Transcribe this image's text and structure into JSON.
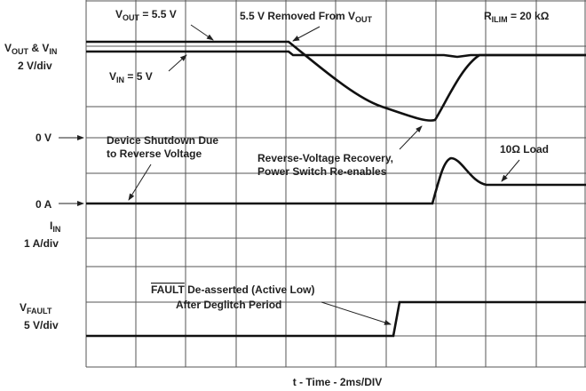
{
  "axis_labels": {
    "vout_vin": [
      "V",
      "OUT",
      " & V",
      "IN"
    ],
    "vout_vin_scale": "2 V/div",
    "zero_v": "0 V",
    "zero_a": "0 A",
    "iin": [
      "I",
      "IN"
    ],
    "iin_scale": "1 A/div",
    "vfault": [
      "V",
      "FAULT"
    ],
    "vfault_scale": "5 V/div",
    "time": "t - Time - 2ms/DIV"
  },
  "annotations": {
    "vout_level": [
      "V",
      "OUT",
      " = 5.5 V"
    ],
    "removed": [
      "5.5 V Removed From V",
      "OUT"
    ],
    "rilim": [
      "R",
      "ILIM",
      " = 20 kΩ"
    ],
    "vin_level": [
      "V",
      "IN",
      " = 5 V"
    ],
    "shutdown": [
      "Device Shutdown Due",
      "to Reverse Voltage"
    ],
    "recovery": [
      "Reverse-Voltage Recovery,",
      "Power Switch Re-enables"
    ],
    "load": "10Ω Load",
    "fault": [
      "FAULT",
      " De-asserted (Active Low)",
      "After Deglitch Period"
    ]
  }
}
